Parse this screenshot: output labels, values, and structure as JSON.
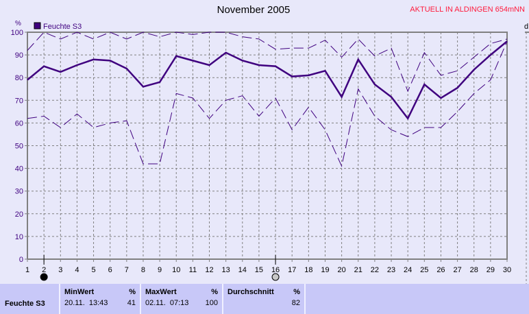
{
  "chart_data": {
    "type": "line",
    "title": "November 2005",
    "subtitle": "AKTUELL IN ALDINGEN 654mNN",
    "ylabel": "%",
    "ylim": [
      0,
      100
    ],
    "yticks": [
      0,
      10,
      20,
      30,
      40,
      50,
      60,
      70,
      80,
      90,
      100
    ],
    "x": [
      1,
      2,
      3,
      4,
      5,
      6,
      7,
      8,
      9,
      10,
      11,
      12,
      13,
      14,
      15,
      16,
      17,
      18,
      19,
      20,
      21,
      22,
      23,
      24,
      25,
      26,
      27,
      28,
      29,
      30
    ],
    "grid": true,
    "legend": "top-left",
    "series": [
      {
        "name": "Feuchte S3",
        "role": "mean",
        "color": "#3f007f",
        "style": "solid",
        "values": [
          79,
          85,
          82.5,
          85.5,
          88,
          87.5,
          84,
          76,
          78,
          89.5,
          87.5,
          85.5,
          91,
          87.5,
          85.5,
          85,
          80.5,
          81,
          83,
          71.5,
          88,
          77,
          71.5,
          62,
          77,
          71,
          75.5,
          83.5,
          90,
          96
        ]
      },
      {
        "role": "max",
        "color": "#3f007f",
        "style": "dashed",
        "values": [
          92,
          100,
          97,
          100,
          97,
          100,
          97,
          100,
          98,
          100,
          99,
          100,
          100,
          98,
          97,
          92.5,
          93,
          93,
          96.5,
          89,
          97,
          89.5,
          93,
          74,
          91,
          81,
          83,
          89,
          95,
          97
        ]
      },
      {
        "role": "min",
        "color": "#3f007f",
        "style": "dashed",
        "values": [
          62,
          63,
          58,
          64,
          58,
          60,
          61,
          42,
          42,
          73,
          71,
          62,
          70,
          72,
          63,
          71,
          57,
          67,
          57,
          41,
          75,
          63,
          57,
          54,
          58,
          58,
          65,
          73,
          79,
          96
        ]
      }
    ],
    "moon_phases": [
      {
        "day": 2,
        "phase": "new-moon"
      },
      {
        "day": 16,
        "phase": "full-moon"
      }
    ],
    "right_panel_label": "d"
  },
  "table": {
    "row_label": "Feuchte S3",
    "min": {
      "header": "MinWert",
      "unit": "%",
      "time": "20.11.  13:43",
      "value": "41"
    },
    "max": {
      "header": "MaxWert",
      "unit": "%",
      "time": "02.11.  07:13",
      "value": "100"
    },
    "avg": {
      "header": "Durchschnitt",
      "unit": "%",
      "value": "82"
    }
  }
}
